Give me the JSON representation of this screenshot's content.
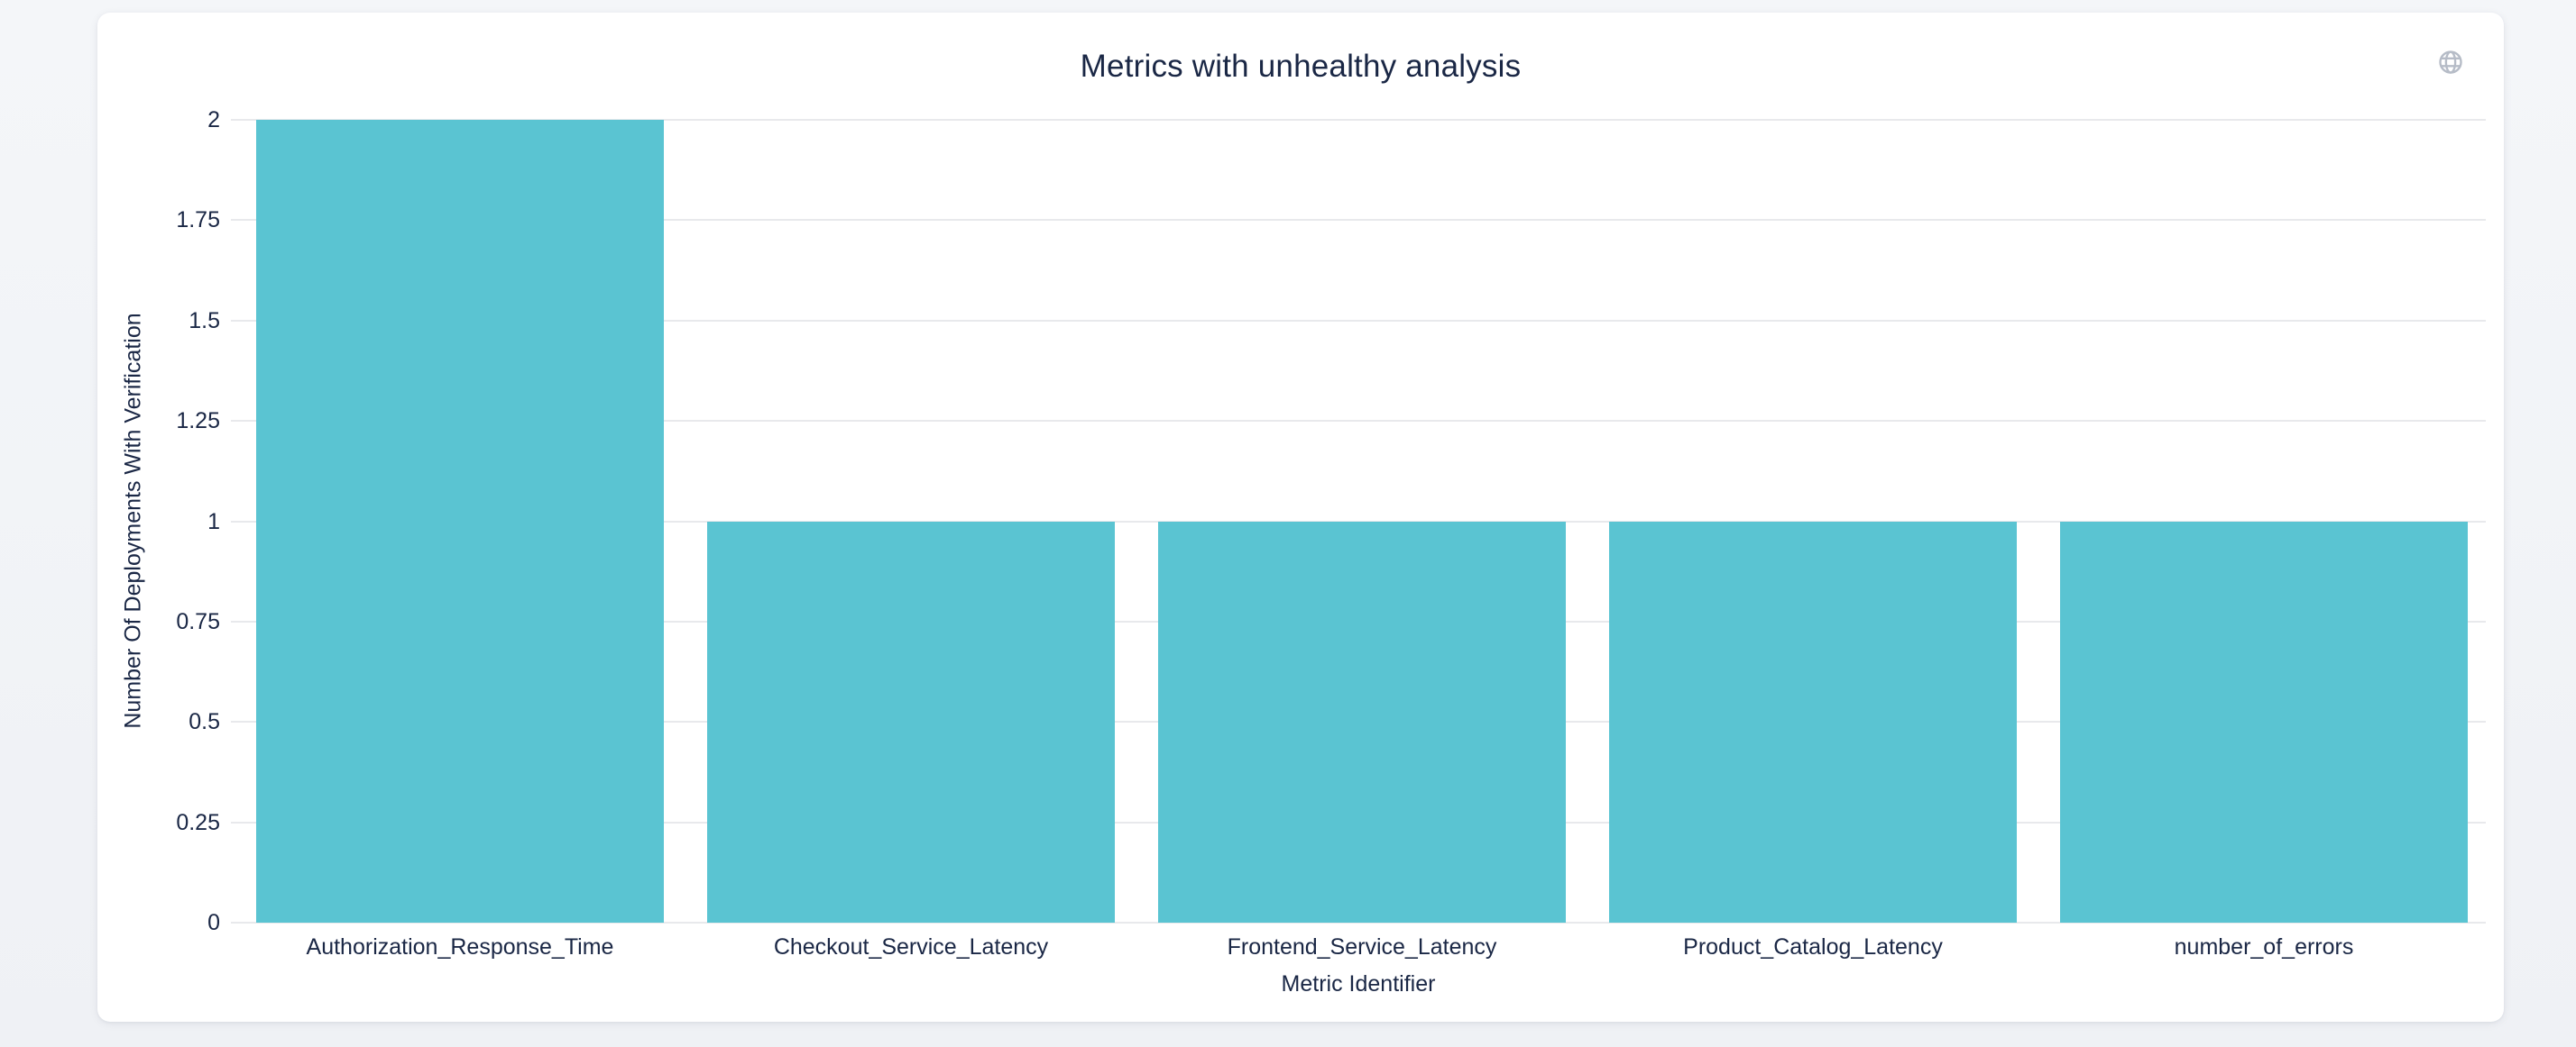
{
  "header": {
    "globe_icon": "globe",
    "globe_icon_color": "#b6bcc7"
  },
  "chart_data": {
    "type": "bar",
    "title": "Metrics with unhealthy analysis",
    "xlabel": "Metric Identifier",
    "ylabel": "Number Of Deployments With Verification",
    "categories": [
      "Authorization_Response_Time",
      "Checkout_Service_Latency",
      "Frontend_Service_Latency",
      "Product_Catalog_Latency",
      "number_of_errors"
    ],
    "values": [
      2,
      1,
      1,
      1,
      1
    ],
    "ylim": [
      0,
      2
    ],
    "y_ticks": [
      "0",
      "0.25",
      "0.5",
      "0.75",
      "1",
      "1.25",
      "1.5",
      "1.75",
      "2"
    ],
    "y_tick_values": [
      0,
      0.25,
      0.5,
      0.75,
      1,
      1.25,
      1.5,
      1.75,
      2
    ],
    "grid": true,
    "legend": false,
    "bar_color": "#5ac4d2",
    "grid_color": "#e8e9ec",
    "text_color": "#1a2745"
  }
}
